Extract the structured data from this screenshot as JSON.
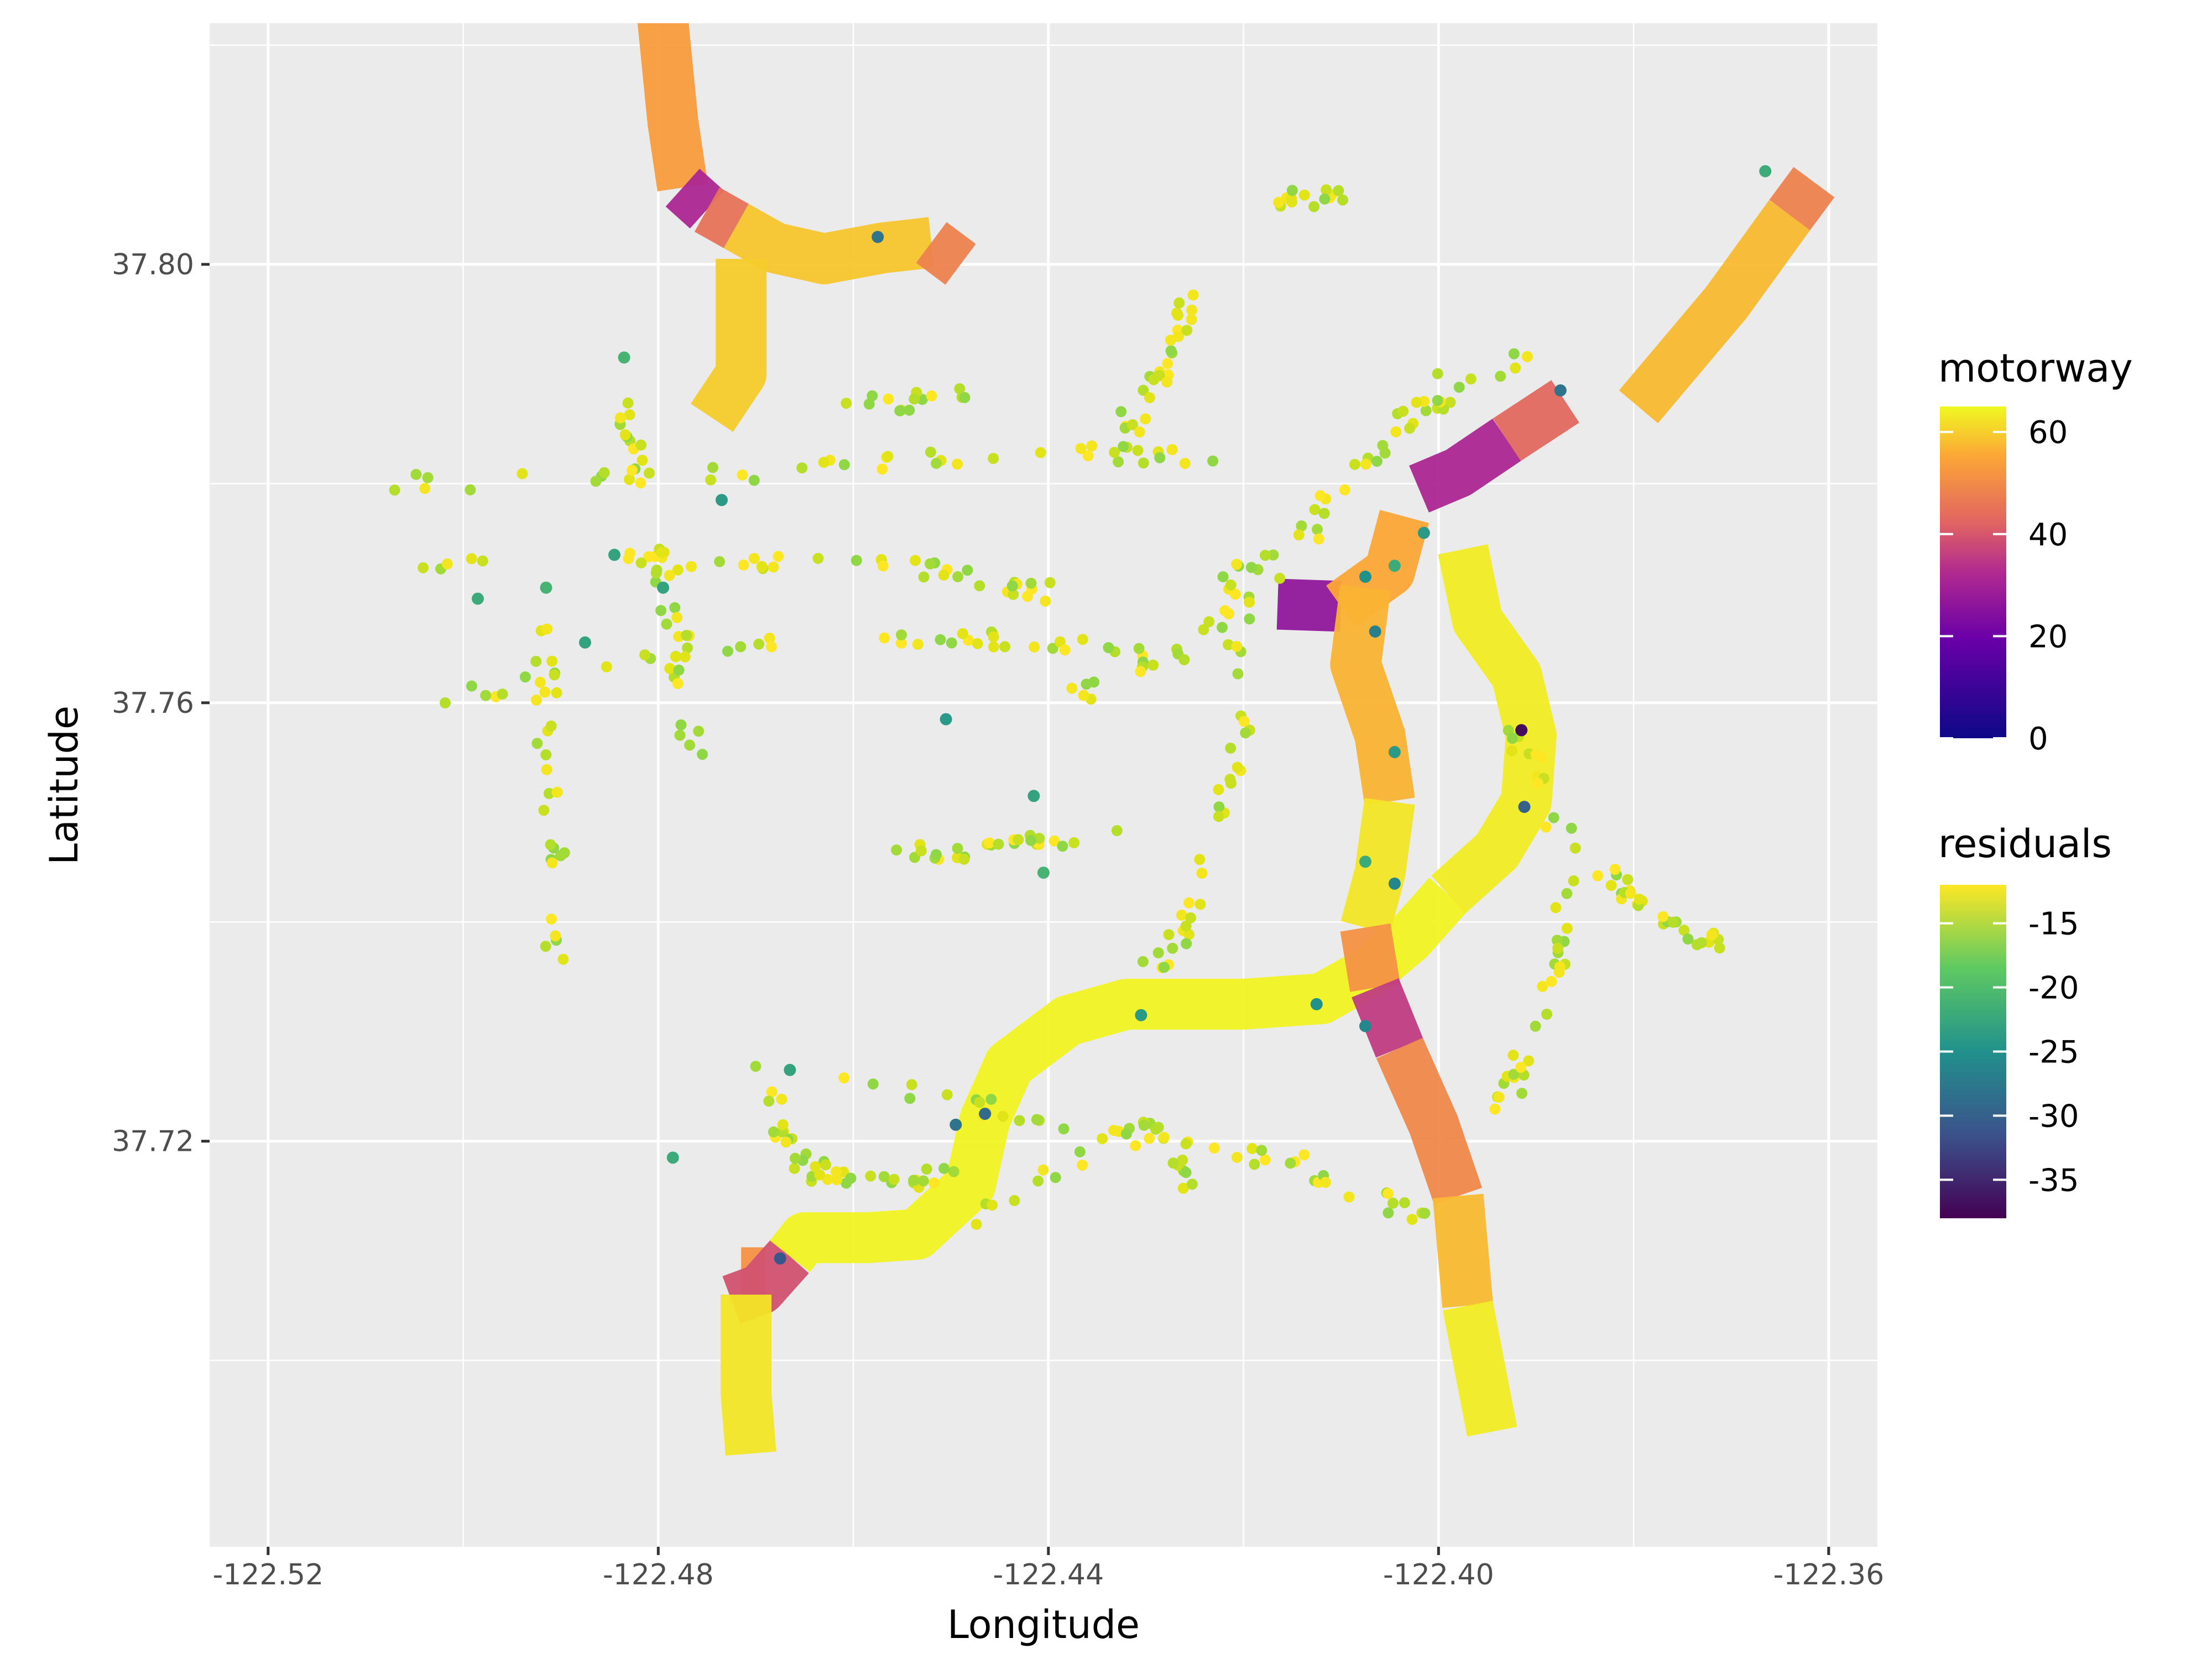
{
  "chart_data": {
    "type": "scatter",
    "xlabel": "Longitude",
    "ylabel": "Latitude",
    "xlim": [
      -122.526,
      -122.355
    ],
    "ylim": [
      37.683,
      37.822
    ],
    "x_ticks": [
      -122.52,
      -122.48,
      -122.44,
      -122.4,
      -122.36
    ],
    "x_tick_labels": [
      "-122.52",
      "-122.48",
      "-122.44",
      "-122.40",
      "-122.36"
    ],
    "y_ticks": [
      37.72,
      37.76,
      37.8
    ],
    "y_tick_labels": [
      "37.72",
      "37.76",
      "37.80"
    ],
    "grid": true,
    "legend_placement": "right",
    "legends": {
      "motorway": {
        "title": "motorway",
        "range": [
          0,
          65
        ],
        "ticks": [
          0,
          20,
          40,
          60
        ],
        "tick_labels": [
          "0",
          "20",
          "40",
          "60"
        ],
        "palette": [
          "#0d0887",
          "#6a00a8",
          "#b12a90",
          "#e16462",
          "#fca636",
          "#f0f921"
        ]
      },
      "residuals": {
        "title": "residuals",
        "range": [
          -38,
          -12
        ],
        "ticks": [
          -15,
          -20,
          -25,
          -30,
          -35
        ],
        "tick_labels": [
          "-15",
          "-20",
          "-25",
          "-30",
          "-35"
        ],
        "palette": [
          "#440154",
          "#3b528b",
          "#21918c",
          "#5ec962",
          "#fde725"
        ]
      }
    },
    "motorway_series": [
      {
        "color_value": 50,
        "points": [
          [
            -122.479,
            37.8295
          ],
          [
            -122.4795,
            37.822
          ],
          [
            -122.4785,
            37.813
          ],
          [
            -122.4775,
            37.807
          ]
        ]
      },
      {
        "color_value": 25,
        "points": [
          [
            -122.4775,
            37.807
          ],
          [
            -122.475,
            37.805
          ]
        ]
      },
      {
        "color_value": 42,
        "points": [
          [
            -122.475,
            37.805
          ],
          [
            -122.472,
            37.8035
          ]
        ]
      },
      {
        "color_value": 57,
        "points": [
          [
            -122.472,
            37.8035
          ],
          [
            -122.468,
            37.8015
          ],
          [
            -122.463,
            37.8005
          ],
          [
            -122.457,
            37.8015
          ],
          [
            -122.452,
            37.802
          ]
        ]
      },
      {
        "color_value": 45,
        "points": [
          [
            -122.452,
            37.802
          ],
          [
            -122.449,
            37.8
          ]
        ]
      },
      {
        "color_value": 58,
        "points": [
          [
            -122.4715,
            37.8005
          ],
          [
            -122.4715,
            37.79
          ],
          [
            -122.4745,
            37.786
          ]
        ]
      },
      {
        "color_value": 48,
        "points": [
          [
            -122.4715,
            37.708
          ],
          [
            -122.469,
            37.708
          ]
        ]
      },
      {
        "color_value": 35,
        "points": [
          [
            -122.4725,
            37.7055
          ],
          [
            -122.4695,
            37.7065
          ],
          [
            -122.4665,
            37.7095
          ]
        ]
      },
      {
        "color_value": 62,
        "points": [
          [
            -122.471,
            37.706
          ],
          [
            -122.471,
            37.697
          ],
          [
            -122.4705,
            37.6915
          ]
        ]
      },
      {
        "color_value": 64,
        "points": [
          [
            -122.4665,
            37.7095
          ],
          [
            -122.465,
            37.7112
          ],
          [
            -122.4585,
            37.7112
          ],
          [
            -122.4535,
            37.7115
          ],
          [
            -122.448,
            37.716
          ],
          [
            -122.4465,
            37.722
          ],
          [
            -122.444,
            37.727
          ],
          [
            -122.438,
            37.731
          ],
          [
            -122.432,
            37.7325
          ],
          [
            -122.42,
            37.7325
          ],
          [
            -122.412,
            37.733
          ],
          [
            -122.407,
            37.7355
          ],
          [
            -122.403,
            37.7385
          ],
          [
            -122.399,
            37.7425
          ]
        ]
      },
      {
        "color_value": 63,
        "points": [
          [
            -122.399,
            37.7425
          ],
          [
            -122.394,
            37.7465
          ],
          [
            -122.391,
            37.751
          ],
          [
            -122.3905,
            37.757
          ],
          [
            -122.392,
            37.7625
          ],
          [
            -122.396,
            37.7675
          ],
          [
            -122.3975,
            37.774
          ]
        ]
      },
      {
        "color_value": 55,
        "points": [
          [
            -122.3795,
            37.787
          ],
          [
            -122.3705,
            37.7965
          ],
          [
            -122.364,
            37.8045
          ]
        ]
      },
      {
        "color_value": 45,
        "points": [
          [
            -122.364,
            37.8045
          ],
          [
            -122.3615,
            37.8075
          ]
        ]
      },
      {
        "color_value": 25,
        "points": [
          [
            -122.402,
            37.7795
          ],
          [
            -122.398,
            37.781
          ],
          [
            -122.393,
            37.784
          ]
        ]
      },
      {
        "color_value": 40,
        "points": [
          [
            -122.393,
            37.784
          ],
          [
            -122.387,
            37.7875
          ]
        ]
      },
      {
        "color_value": 20,
        "points": [
          [
            -122.4165,
            37.769
          ],
          [
            -122.41,
            37.7688
          ]
        ]
      },
      {
        "color_value": 52,
        "points": [
          [
            -122.41,
            37.7688
          ],
          [
            -122.405,
            37.772
          ],
          [
            -122.4035,
            37.777
          ]
        ]
      },
      {
        "color_value": 54,
        "points": [
          [
            -122.4075,
            37.7705
          ],
          [
            -122.4085,
            37.7635
          ],
          [
            -122.406,
            37.757
          ],
          [
            -122.405,
            37.751
          ]
        ]
      },
      {
        "color_value": 62,
        "points": [
          [
            -122.405,
            37.751
          ],
          [
            -122.406,
            37.7445
          ],
          [
            -122.4075,
            37.7395
          ]
        ]
      },
      {
        "color_value": 48,
        "points": [
          [
            -122.4075,
            37.7395
          ],
          [
            -122.4065,
            37.734
          ]
        ]
      },
      {
        "color_value": 30,
        "points": [
          [
            -122.4065,
            37.734
          ],
          [
            -122.404,
            37.7285
          ]
        ]
      },
      {
        "color_value": 46,
        "points": [
          [
            -122.404,
            37.7285
          ],
          [
            -122.4005,
            37.7215
          ],
          [
            -122.398,
            37.715
          ]
        ]
      },
      {
        "color_value": 55,
        "points": [
          [
            -122.398,
            37.715
          ],
          [
            -122.397,
            37.705
          ]
        ]
      },
      {
        "color_value": 63,
        "points": [
          [
            -122.397,
            37.705
          ],
          [
            -122.3945,
            37.6935
          ]
        ]
      }
    ],
    "residual_points": [
      {
        "x": -122.4735,
        "y": 37.7785,
        "residual": -24
      },
      {
        "x": -122.4835,
        "y": 37.7915,
        "residual": -21
      },
      {
        "x": -122.4505,
        "y": 37.7585,
        "residual": -24
      },
      {
        "x": -122.4575,
        "y": 37.8025,
        "residual": -28
      },
      {
        "x": -122.4465,
        "y": 37.7225,
        "residual": -29
      },
      {
        "x": -122.4675,
        "y": 37.7093,
        "residual": -31
      },
      {
        "x": -122.3915,
        "y": 37.7575,
        "residual": -37
      },
      {
        "x": -122.3912,
        "y": 37.7505,
        "residual": -30
      },
      {
        "x": -122.4075,
        "y": 37.7715,
        "residual": -25
      },
      {
        "x": -122.4045,
        "y": 37.7725,
        "residual": -22
      },
      {
        "x": -122.4075,
        "y": 37.7305,
        "residual": -26
      },
      {
        "x": -122.4015,
        "y": 37.7755,
        "residual": -24
      },
      {
        "x": -122.3875,
        "y": 37.7885,
        "residual": -28
      },
      {
        "x": -122.3665,
        "y": 37.8085,
        "residual": -22
      },
      {
        "x": -122.4845,
        "y": 37.7735,
        "residual": -23
      },
      {
        "x": -122.4795,
        "y": 37.7705,
        "residual": -23
      },
      {
        "x": -122.4415,
        "y": 37.7515,
        "residual": -23
      },
      {
        "x": -122.4405,
        "y": 37.7445,
        "residual": -21
      },
      {
        "x": -122.4045,
        "y": 37.7435,
        "residual": -26
      },
      {
        "x": -122.4045,
        "y": 37.7555,
        "residual": -24
      },
      {
        "x": -122.4065,
        "y": 37.7665,
        "residual": -27
      },
      {
        "x": -122.4495,
        "y": 37.7215,
        "residual": -28
      },
      {
        "x": -122.4305,
        "y": 37.7315,
        "residual": -24
      },
      {
        "x": -122.4125,
        "y": 37.7325,
        "residual": -25
      },
      {
        "x": -122.4875,
        "y": 37.7655,
        "residual": -23
      },
      {
        "x": -122.4985,
        "y": 37.7695,
        "residual": -22
      },
      {
        "x": -122.4915,
        "y": 37.7705,
        "residual": -21
      },
      {
        "x": -122.4665,
        "y": 37.7265,
        "residual": -23
      },
      {
        "x": -122.4075,
        "y": 37.7455,
        "residual": -22
      },
      {
        "x": -122.4785,
        "y": 37.7185,
        "residual": -22
      }
    ],
    "background_point_cloud": "many small yellow-green points (residuals about -12 to -20) scattered along the street grid"
  }
}
